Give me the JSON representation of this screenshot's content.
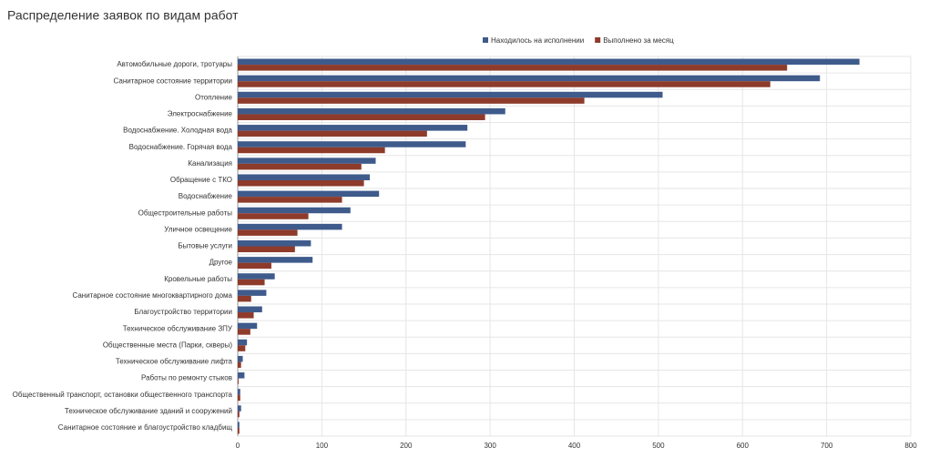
{
  "chart_data": {
    "type": "hbar",
    "title": "Распределение заявок по видам работ",
    "categories": [
      "Автомобильные дороги, тротуары",
      "Санитарное состояние территории",
      "Отопление",
      "Электроснабжение",
      "Водоснабжение. Холодная вода",
      "Водоснабжение. Горячая вода",
      "Канализация",
      "Обращение с ТКО",
      "Водоснабжение",
      "Общестроительные работы",
      "Уличное освещение",
      "Бытовые услуги",
      "Другое",
      "Кровельные работы",
      "Санитарное состояние многоквартирного дома",
      "Благоустройство территории",
      "Техническое обслуживание ЗПУ",
      "Общественные места (Парки, скверы)",
      "Техническое обслуживание лифта",
      "Работы по ремонту стыков",
      "Общественный транспорт, остановки общественного транспорта",
      "Техническое обслуживание зданий и сооружений",
      "Санитарное состояние и благоустройство кладбищ"
    ],
    "series": [
      {
        "name": "Находилось на исполнении",
        "color": "#3f5b8c",
        "values": [
          739,
          692,
          505,
          318,
          273,
          271,
          164,
          157,
          168,
          134,
          124,
          87,
          89,
          44,
          34,
          29,
          23,
          11,
          6,
          8,
          3,
          4,
          2
        ]
      },
      {
        "name": "Выполнено за месяц",
        "color": "#8e3b2b",
        "values": [
          653,
          633,
          412,
          294,
          225,
          175,
          147,
          150,
          124,
          84,
          71,
          68,
          40,
          32,
          16,
          19,
          15,
          9,
          4,
          1,
          3,
          2,
          2
        ]
      }
    ],
    "xlim": [
      0,
      800
    ],
    "xticks": [
      0,
      100,
      200,
      300,
      400,
      500,
      600,
      700,
      800
    ],
    "grid": true,
    "legend": "top"
  }
}
